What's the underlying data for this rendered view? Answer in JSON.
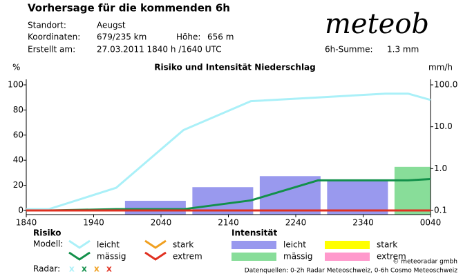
{
  "header": {
    "title": "Vorhersage für die kommenden 6h",
    "location_label": "Standort:",
    "location": "Aeugst",
    "coords_label": "Koordinaten:",
    "coords": "679/235 km",
    "height_label": "Höhe:",
    "height": "656 m",
    "created_label": "Erstellt am:",
    "created": "27.03.2011 1840 h /1640 UTC",
    "sum_label": "6h-Summe:",
    "sum": "1.3 mm",
    "logo": "meteob"
  },
  "chart_data": {
    "type": "line",
    "title": "Risiko und Intensität Niederschlag",
    "y_label": "%",
    "y2_label": "mm/h",
    "xlim": [
      0,
      360
    ],
    "xticks": [
      {
        "value": 0,
        "label": "1840"
      },
      {
        "value": 60,
        "label": "1940"
      },
      {
        "value": 120,
        "label": "2040"
      },
      {
        "value": 180,
        "label": "2140"
      },
      {
        "value": 240,
        "label": "2240"
      },
      {
        "value": 300,
        "label": "2340"
      },
      {
        "value": 360,
        "label": "0040"
      }
    ],
    "ylim": [
      0,
      100
    ],
    "yticks": [
      0,
      20,
      40,
      60,
      80,
      100
    ],
    "y2lim": [
      0.1,
      100
    ],
    "y2_log": true,
    "y2ticks": [
      0.1,
      {
        "value": 1,
        "label": "1.0"
      },
      {
        "value": 10,
        "label": "10.0"
      },
      {
        "value": 100,
        "label": "100.0"
      }
    ],
    "risk_title": "Risiko",
    "model_label": "Modell:",
    "intensity_title": "Intensität",
    "radar_label": "Radar:",
    "radar_marker": "x",
    "x": [
      0,
      20,
      80,
      140,
      200,
      260,
      320,
      340,
      360
    ],
    "series": [
      {
        "name": "leicht",
        "color": "#aaf0f8",
        "values": [
          1,
          1,
          18,
          64,
          87,
          90,
          93,
          93,
          88
        ]
      },
      {
        "name": "mässig",
        "color": "#12904a",
        "values": [
          0,
          0,
          1,
          1,
          8,
          24,
          24,
          24,
          25
        ]
      },
      {
        "name": "stark",
        "color": "#f0a020",
        "values": [
          0,
          0,
          0,
          0,
          0,
          0,
          0,
          0,
          0
        ]
      },
      {
        "name": "extrem",
        "color": "#e03020",
        "values": [
          0,
          0,
          0,
          0,
          0,
          0,
          0,
          0,
          0
        ]
      }
    ],
    "intensity": [
      {
        "name": "leicht",
        "color": "#9999ee",
        "axis": "y2",
        "x": [
          115,
          175,
          235,
          295
        ],
        "values": [
          0.17,
          0.36,
          0.66,
          0.55
        ]
      },
      {
        "name": "mässig",
        "color": "#88dd99",
        "axis": "y2",
        "x": [
          355
        ],
        "values": [
          1.1
        ]
      },
      {
        "name": "stark",
        "color": "#ffff00",
        "axis": "y2",
        "x": [],
        "values": []
      },
      {
        "name": "extrem",
        "color": "#ff99cc",
        "axis": "y2",
        "x": [],
        "values": []
      }
    ]
  },
  "footer": {
    "copyright": "© meteoradar gmbh",
    "sources": "Datenquellen: 0-2h Radar Meteoschweiz, 0-6h Cosmo Meteoschweiz"
  }
}
